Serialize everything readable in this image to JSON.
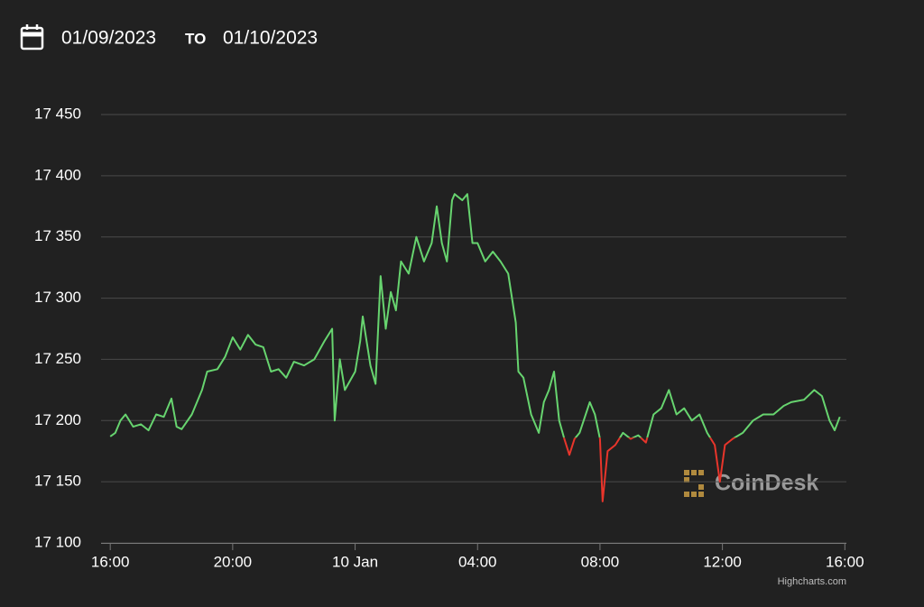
{
  "header": {
    "from": "01/09/2023",
    "to_label": "TO",
    "to": "01/10/2023"
  },
  "chart_data": {
    "type": "line",
    "x": [
      "2023-01-09T16:00",
      "2023-01-09T16:10",
      "2023-01-09T16:20",
      "2023-01-09T16:30",
      "2023-01-09T16:45",
      "2023-01-09T17:00",
      "2023-01-09T17:15",
      "2023-01-09T17:30",
      "2023-01-09T17:45",
      "2023-01-09T18:00",
      "2023-01-09T18:10",
      "2023-01-09T18:20",
      "2023-01-09T18:40",
      "2023-01-09T19:00",
      "2023-01-09T19:10",
      "2023-01-09T19:30",
      "2023-01-09T19:45",
      "2023-01-09T20:00",
      "2023-01-09T20:15",
      "2023-01-09T20:30",
      "2023-01-09T20:45",
      "2023-01-09T21:00",
      "2023-01-09T21:15",
      "2023-01-09T21:30",
      "2023-01-09T21:45",
      "2023-01-09T22:00",
      "2023-01-09T22:20",
      "2023-01-09T22:40",
      "2023-01-09T23:00",
      "2023-01-09T23:15",
      "2023-01-09T23:20",
      "2023-01-09T23:30",
      "2023-01-09T23:40",
      "2023-01-10T00:00",
      "2023-01-10T00:10",
      "2023-01-10T00:15",
      "2023-01-10T00:30",
      "2023-01-10T00:40",
      "2023-01-10T00:50",
      "2023-01-10T01:00",
      "2023-01-10T01:10",
      "2023-01-10T01:20",
      "2023-01-10T01:30",
      "2023-01-10T01:45",
      "2023-01-10T02:00",
      "2023-01-10T02:15",
      "2023-01-10T02:30",
      "2023-01-10T02:40",
      "2023-01-10T02:50",
      "2023-01-10T03:00",
      "2023-01-10T03:10",
      "2023-01-10T03:15",
      "2023-01-10T03:30",
      "2023-01-10T03:40",
      "2023-01-10T03:50",
      "2023-01-10T04:00",
      "2023-01-10T04:15",
      "2023-01-10T04:30",
      "2023-01-10T04:45",
      "2023-01-10T05:00",
      "2023-01-10T05:15",
      "2023-01-10T05:20",
      "2023-01-10T05:30",
      "2023-01-10T05:45",
      "2023-01-10T06:00",
      "2023-01-10T06:10",
      "2023-01-10T06:20",
      "2023-01-10T06:30",
      "2023-01-10T06:40",
      "2023-01-10T06:50",
      "2023-01-10T07:00",
      "2023-01-10T07:10",
      "2023-01-10T07:20",
      "2023-01-10T07:40",
      "2023-01-10T07:50",
      "2023-01-10T08:00",
      "2023-01-10T08:05",
      "2023-01-10T08:15",
      "2023-01-10T08:30",
      "2023-01-10T08:45",
      "2023-01-10T09:00",
      "2023-01-10T09:15",
      "2023-01-10T09:30",
      "2023-01-10T09:45",
      "2023-01-10T10:00",
      "2023-01-10T10:15",
      "2023-01-10T10:30",
      "2023-01-10T10:45",
      "2023-01-10T11:00",
      "2023-01-10T11:15",
      "2023-01-10T11:30",
      "2023-01-10T11:45",
      "2023-01-10T11:55",
      "2023-01-10T12:05",
      "2023-01-10T12:20",
      "2023-01-10T12:40",
      "2023-01-10T13:00",
      "2023-01-10T13:20",
      "2023-01-10T13:40",
      "2023-01-10T14:00",
      "2023-01-10T14:15",
      "2023-01-10T14:40",
      "2023-01-10T15:00",
      "2023-01-10T15:15",
      "2023-01-10T15:30",
      "2023-01-10T15:40",
      "2023-01-10T15:50"
    ],
    "values": [
      17187,
      17190,
      17200,
      17205,
      17195,
      17197,
      17192,
      17205,
      17203,
      17218,
      17195,
      17193,
      17205,
      17225,
      17240,
      17242,
      17252,
      17268,
      17258,
      17270,
      17262,
      17260,
      17240,
      17242,
      17235,
      17248,
      17245,
      17250,
      17265,
      17275,
      17200,
      17250,
      17225,
      17240,
      17265,
      17285,
      17245,
      17230,
      17318,
      17275,
      17305,
      17290,
      17330,
      17320,
      17350,
      17330,
      17345,
      17375,
      17345,
      17330,
      17380,
      17385,
      17380,
      17385,
      17345,
      17345,
      17330,
      17338,
      17330,
      17320,
      17280,
      17240,
      17235,
      17205,
      17190,
      17215,
      17225,
      17240,
      17200,
      17185,
      17172,
      17185,
      17190,
      17215,
      17205,
      17185,
      17134,
      17175,
      17180,
      17190,
      17185,
      17188,
      17182,
      17205,
      17210,
      17225,
      17205,
      17210,
      17200,
      17205,
      17190,
      17180,
      17150,
      17180,
      17185,
      17190,
      17200,
      17205,
      17205,
      17212,
      17215,
      17217,
      17225,
      17220,
      17200,
      17192,
      17203
    ],
    "color": "#67d46f",
    "threshold": 17186,
    "negative_color": "#e8352b",
    "xlim": [
      "2023-01-09T15:42",
      "2023-01-10T16:03"
    ],
    "xticks": [
      {
        "value": "2023-01-09T16:00",
        "label": "16:00"
      },
      {
        "value": "2023-01-09T20:00",
        "label": "20:00"
      },
      {
        "value": "2023-01-10T00:00",
        "label": "10 Jan"
      },
      {
        "value": "2023-01-10T04:00",
        "label": "04:00"
      },
      {
        "value": "2023-01-10T08:00",
        "label": "08:00"
      },
      {
        "value": "2023-01-10T12:00",
        "label": "12:00"
      },
      {
        "value": "2023-01-10T16:00",
        "label": "16:00"
      }
    ],
    "ylim": [
      17100,
      17450
    ],
    "yticks": [
      {
        "value": 17100,
        "label": "17 100"
      },
      {
        "value": 17150,
        "label": "17 150"
      },
      {
        "value": 17200,
        "label": "17 200"
      },
      {
        "value": 17250,
        "label": "17 250"
      },
      {
        "value": 17300,
        "label": "17 300"
      },
      {
        "value": 17350,
        "label": "17 350"
      },
      {
        "value": 17400,
        "label": "17 400"
      },
      {
        "value": 17450,
        "label": "17 450"
      }
    ],
    "grid": true,
    "watermark": "CoinDesk",
    "credits": "Highcharts.com"
  }
}
